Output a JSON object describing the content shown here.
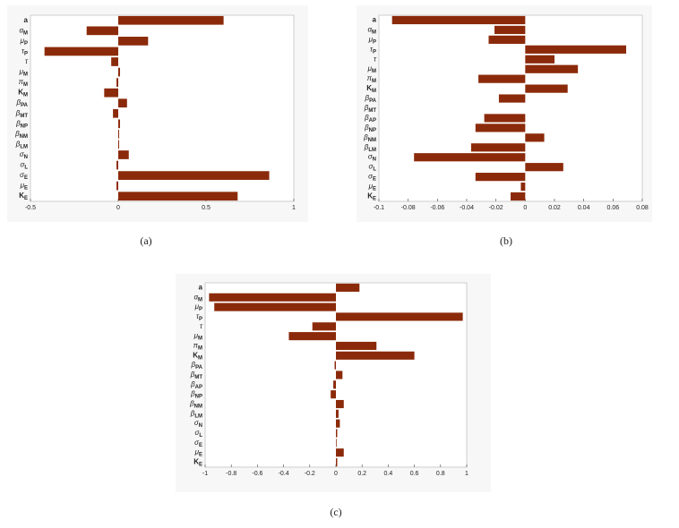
{
  "chart_data": [
    {
      "type": "barh",
      "caption": "(a)",
      "color": "#8b2a0a",
      "categories": [
        {
          "base": "a"
        },
        {
          "base": "α",
          "sub": "M"
        },
        {
          "base": "μ",
          "sub": "P"
        },
        {
          "base": "τ",
          "sub": "P"
        },
        {
          "base": "τ"
        },
        {
          "base": "μ",
          "sub": "M"
        },
        {
          "base": "π",
          "sub": "M"
        },
        {
          "base": "K",
          "sub": "M"
        },
        {
          "base": "β",
          "sub": "PA"
        },
        {
          "base": "β",
          "sub": "MT"
        },
        {
          "base": "β",
          "sub": "NP"
        },
        {
          "base": "β",
          "sub": "NM"
        },
        {
          "base": "β",
          "sub": "LM"
        },
        {
          "base": "σ",
          "sub": "N"
        },
        {
          "base": "σ",
          "sub": "L"
        },
        {
          "base": "σ",
          "sub": "E"
        },
        {
          "base": "μ",
          "sub": "E"
        },
        {
          "base": "K",
          "sub": "E"
        }
      ],
      "values": [
        0.6,
        -0.18,
        0.17,
        -0.42,
        -0.04,
        0.01,
        -0.01,
        -0.08,
        0.05,
        -0.03,
        0.01,
        0.005,
        0.005,
        0.06,
        -0.01,
        0.86,
        -0.01,
        0.68
      ],
      "xlim": [
        -0.5,
        1
      ],
      "xticks": [
        -0.5,
        0,
        0.5,
        1
      ]
    },
    {
      "type": "barh",
      "caption": "(b)",
      "color": "#8b2a0a",
      "categories": [
        {
          "base": "a"
        },
        {
          "base": "α",
          "sub": "M"
        },
        {
          "base": "μ",
          "sub": "P"
        },
        {
          "base": "τ",
          "sub": "P"
        },
        {
          "base": "τ"
        },
        {
          "base": "μ",
          "sub": "M"
        },
        {
          "base": "π",
          "sub": "M"
        },
        {
          "base": "K",
          "sub": "M"
        },
        {
          "base": "β",
          "sub": "PA"
        },
        {
          "base": "β",
          "sub": "MT"
        },
        {
          "base": "β",
          "sub": "AP"
        },
        {
          "base": "β",
          "sub": "NP"
        },
        {
          "base": "β",
          "sub": "NM"
        },
        {
          "base": "β",
          "sub": "LM"
        },
        {
          "base": "σ",
          "sub": "N"
        },
        {
          "base": "σ",
          "sub": "L"
        },
        {
          "base": "σ",
          "sub": "E"
        },
        {
          "base": "μ",
          "sub": "E"
        },
        {
          "base": "K",
          "sub": "E"
        }
      ],
      "values": [
        -0.091,
        -0.021,
        -0.025,
        0.069,
        0.02,
        0.036,
        -0.032,
        0.029,
        -0.018,
        0,
        -0.028,
        -0.034,
        0.013,
        -0.037,
        -0.076,
        0.026,
        -0.034,
        -0.003,
        -0.01
      ],
      "xlim": [
        -0.1,
        0.08
      ],
      "xticks": [
        -0.1,
        -0.08,
        -0.06,
        -0.04,
        -0.02,
        0,
        0.02,
        0.04,
        0.06,
        0.08
      ]
    },
    {
      "type": "barh",
      "caption": "(c)",
      "color": "#8b2a0a",
      "categories": [
        {
          "base": "a"
        },
        {
          "base": "α",
          "sub": "M"
        },
        {
          "base": "μ",
          "sub": "P"
        },
        {
          "base": "τ",
          "sub": "P"
        },
        {
          "base": "τ"
        },
        {
          "base": "μ",
          "sub": "M"
        },
        {
          "base": "π",
          "sub": "M"
        },
        {
          "base": "K",
          "sub": "M"
        },
        {
          "base": "β",
          "sub": "PA"
        },
        {
          "base": "β",
          "sub": "MT"
        },
        {
          "base": "β",
          "sub": "AP"
        },
        {
          "base": "β",
          "sub": "NP"
        },
        {
          "base": "β",
          "sub": "NM"
        },
        {
          "base": "β",
          "sub": "LM"
        },
        {
          "base": "σ",
          "sub": "N"
        },
        {
          "base": "σ",
          "sub": "L"
        },
        {
          "base": "σ",
          "sub": "E"
        },
        {
          "base": "μ",
          "sub": "E"
        },
        {
          "base": "K",
          "sub": "E"
        }
      ],
      "values": [
        0.18,
        -0.97,
        -0.93,
        0.97,
        -0.18,
        -0.36,
        0.31,
        0.6,
        -0.01,
        0.05,
        -0.02,
        -0.04,
        0.06,
        0.02,
        0.03,
        0.01,
        0.005,
        0.06,
        0.01
      ],
      "xlim": [
        -1,
        1
      ],
      "xticks": [
        -1,
        -0.8,
        -0.6,
        -0.4,
        -0.2,
        0,
        0.2,
        0.4,
        0.6,
        0.8,
        1
      ]
    }
  ]
}
